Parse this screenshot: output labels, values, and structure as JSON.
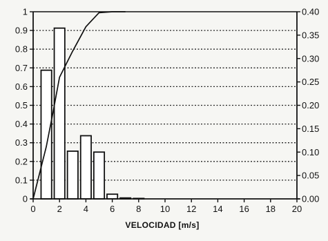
{
  "chart_data": {
    "type": "bar",
    "xlabel": "VELOCIDAD [m/s]",
    "x_ticks": [
      "0",
      "2",
      "4",
      "6",
      "8",
      "10",
      "12",
      "14",
      "16",
      "18",
      "20"
    ],
    "left_ticks": [
      "0",
      "0.1",
      "0.2",
      "0.3",
      "0.4",
      "0.5",
      "0.6",
      "0.7",
      "0.8",
      "0.9",
      "1"
    ],
    "right_ticks": [
      "0.00",
      "0.05",
      "0.10",
      "0.15",
      "0.20",
      "0.25",
      "0.30",
      "0.35",
      "0.40"
    ],
    "xlim": [
      0,
      20
    ],
    "ylim_left": [
      0,
      1
    ],
    "ylim_right": [
      0,
      0.4
    ],
    "grid": true,
    "bars": {
      "axis": "right",
      "x": [
        1,
        2,
        3,
        4,
        5,
        6,
        7,
        8
      ],
      "values": [
        0.275,
        0.365,
        0.102,
        0.135,
        0.1,
        0.01,
        0.002,
        0.001
      ]
    },
    "cumulative_line": {
      "axis": "left",
      "x": [
        0,
        1,
        1.5,
        2,
        3,
        4,
        5,
        6,
        7
      ],
      "values": [
        0,
        0.28,
        0.46,
        0.65,
        0.79,
        0.92,
        0.995,
        1.0,
        1.0
      ]
    }
  }
}
